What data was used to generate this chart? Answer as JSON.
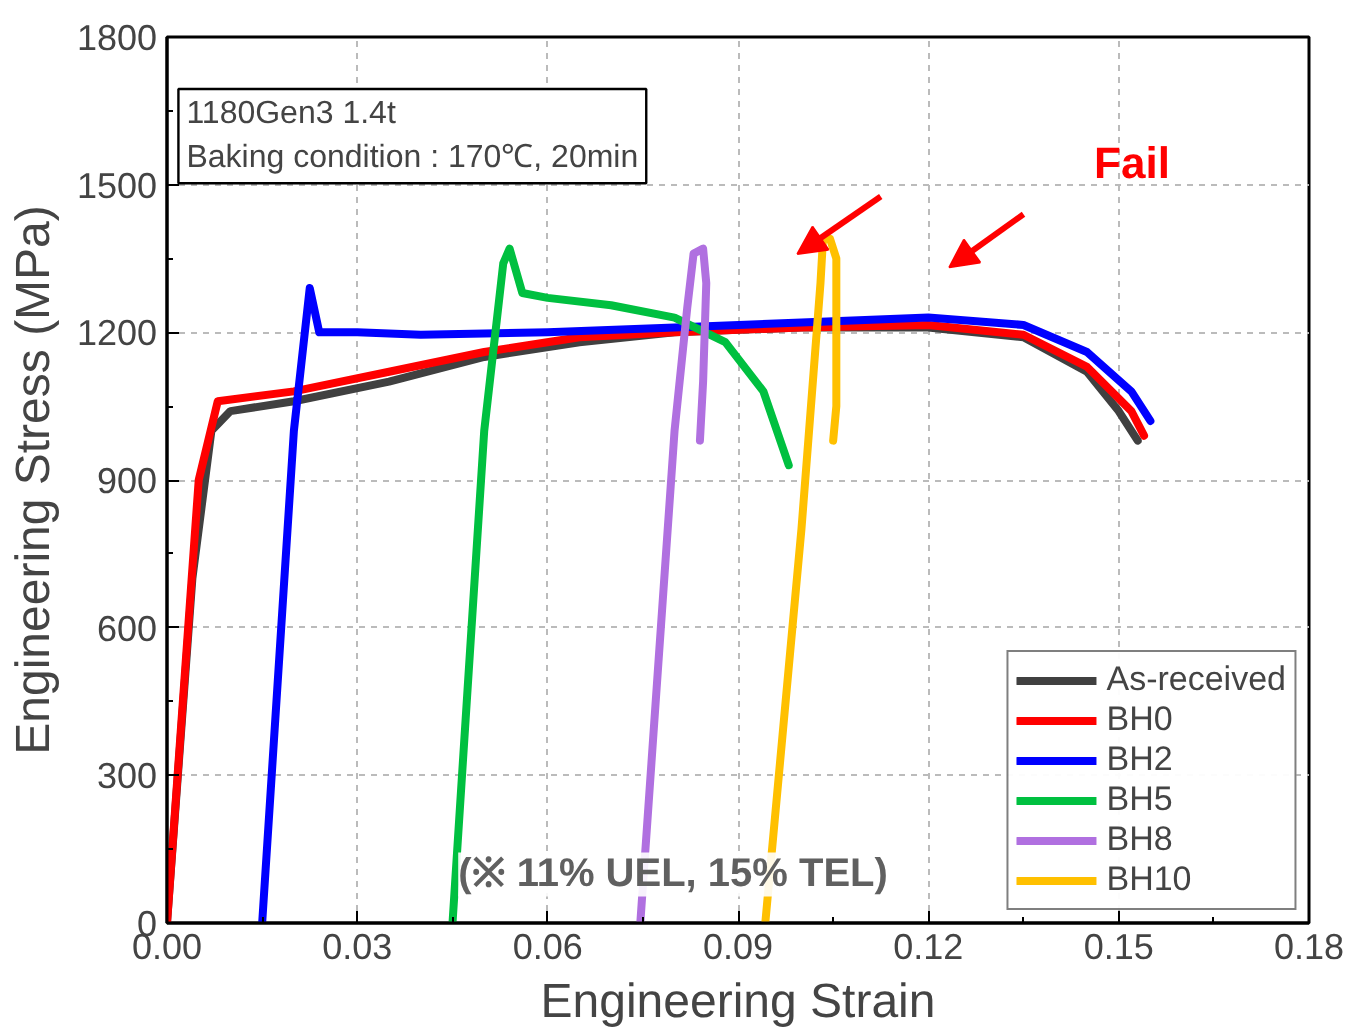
{
  "chart_data": {
    "type": "line",
    "xlabel": "Engineering Strain",
    "ylabel": "Engineering Stress (MPa)",
    "xlim": [
      0,
      0.18
    ],
    "ylim": [
      0,
      1800
    ],
    "xticks": [
      {
        "value": 0,
        "label": "0.00"
      },
      {
        "value": 0.03,
        "label": "0.03"
      },
      {
        "value": 0.06,
        "label": "0.06"
      },
      {
        "value": 0.09,
        "label": "0.09"
      },
      {
        "value": 0.12,
        "label": "0.12"
      },
      {
        "value": 0.15,
        "label": "0.15"
      },
      {
        "value": 0.18,
        "label": "0.18"
      }
    ],
    "yticks": [
      0,
      300,
      600,
      900,
      1200,
      1500,
      1800
    ],
    "grid": true,
    "legend": "bottom right",
    "marker": "none",
    "line_style": "solid",
    "annotations": [
      "1180Gen3 1.4t",
      "Baking condition : 170℃, 20min",
      "Fail",
      "(※ 11% UEL, 15% TEL)"
    ],
    "series": [
      {
        "name": "As-received",
        "color": "#404040",
        "x": [
          0,
          0.004,
          0.007,
          0.01,
          0.02,
          0.035,
          0.05,
          0.065,
          0.08,
          0.1,
          0.12,
          0.135,
          0.145,
          0.15,
          0.153
        ],
        "values": [
          0,
          700,
          1000,
          1040,
          1060,
          1100,
          1150,
          1180,
          1200,
          1210,
          1210,
          1190,
          1120,
          1040,
          980
        ]
      },
      {
        "name": "BH0",
        "color": "#ff0000",
        "x": [
          0,
          0.005,
          0.008,
          0.02,
          0.035,
          0.05,
          0.065,
          0.08,
          0.1,
          0.12,
          0.135,
          0.145,
          0.152,
          0.154
        ],
        "values": [
          0,
          900,
          1060,
          1080,
          1120,
          1160,
          1190,
          1200,
          1210,
          1215,
          1195,
          1130,
          1040,
          990
        ]
      },
      {
        "name": "BH2",
        "color": "#0000ff",
        "x": [
          0.015,
          0.02,
          0.0225,
          0.024,
          0.03,
          0.04,
          0.06,
          0.08,
          0.1,
          0.12,
          0.135,
          0.145,
          0.152,
          0.155
        ],
        "values": [
          0,
          1000,
          1290,
          1200,
          1200,
          1195,
          1200,
          1210,
          1220,
          1230,
          1215,
          1160,
          1080,
          1020
        ]
      },
      {
        "name": "BH5",
        "color": "#00c040",
        "x": [
          0.045,
          0.05,
          0.053,
          0.054,
          0.056,
          0.06,
          0.07,
          0.08,
          0.088,
          0.094,
          0.098
        ],
        "values": [
          0,
          1000,
          1340,
          1370,
          1280,
          1270,
          1255,
          1230,
          1180,
          1080,
          930
        ]
      },
      {
        "name": "BH8",
        "color": "#b070e0",
        "x": [
          0.0746,
          0.08,
          0.082,
          0.083,
          0.0845,
          0.085,
          0.0845,
          0.084
        ],
        "values": [
          0,
          1000,
          1250,
          1360,
          1370,
          1300,
          1100,
          980
        ]
      },
      {
        "name": "BH10",
        "color": "#ffc000",
        "x": [
          0.0943,
          0.1,
          0.103,
          0.1034,
          0.1045,
          0.1055,
          0.1055,
          0.105
        ],
        "values": [
          0,
          800,
          1300,
          1390,
          1390,
          1350,
          1050,
          980
        ]
      }
    ]
  }
}
